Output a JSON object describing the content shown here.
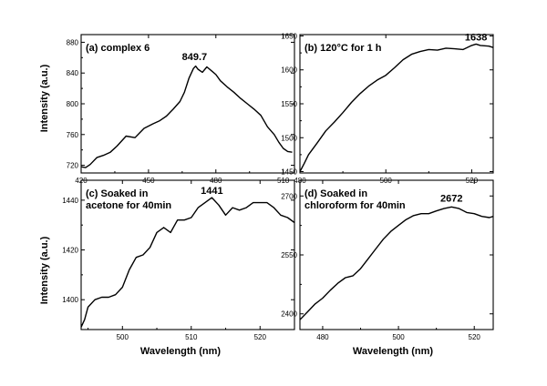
{
  "figure": {
    "ylabel": "Intensity (a.u.)",
    "xlabel": "Wavelength (nm)"
  },
  "chart_data": [
    {
      "type": "line",
      "panel_label": "(a) complex 6",
      "annotation": "849.7",
      "xlim": [
        420,
        515
      ],
      "ylim": [
        710,
        890
      ],
      "xticks": [
        420,
        450,
        480,
        510
      ],
      "yticks": [
        720,
        760,
        800,
        840,
        880
      ],
      "annotation_at": [
        470.5,
        849.7
      ],
      "x": [
        420,
        422,
        424,
        427,
        430,
        433,
        436,
        440,
        444,
        446,
        448,
        450,
        452,
        455,
        458,
        461,
        464,
        466,
        468,
        470,
        471,
        472,
        474,
        476,
        478,
        480,
        482,
        485,
        488,
        491,
        494,
        497,
        500,
        503,
        506,
        508,
        510,
        512,
        514
      ],
      "y": [
        718,
        717,
        721,
        730,
        733,
        737,
        745,
        758,
        756,
        762,
        768,
        771,
        774,
        778,
        784,
        793,
        803,
        815,
        833,
        846,
        849,
        845,
        841,
        848,
        843,
        838,
        830,
        822,
        815,
        807,
        800,
        793,
        785,
        770,
        760,
        750,
        742,
        738,
        737
      ]
    },
    {
      "type": "line",
      "panel_label": "(b) 120°C for 1 h",
      "annotation": "1638",
      "xlim": [
        480,
        525
      ],
      "ylim": [
        1448,
        1652
      ],
      "xticks": [
        480,
        500,
        520
      ],
      "yticks": [
        1450,
        1500,
        1550,
        1600,
        1650
      ],
      "annotation_at": [
        521,
        1638
      ],
      "x": [
        480,
        481,
        482,
        484,
        486,
        488,
        490,
        492,
        494,
        496,
        498,
        500,
        502,
        504,
        506,
        508,
        510,
        512,
        514,
        516,
        518,
        520,
        521,
        522,
        524,
        525
      ],
      "y": [
        1450,
        1462,
        1475,
        1492,
        1510,
        1523,
        1537,
        1552,
        1565,
        1576,
        1585,
        1592,
        1603,
        1615,
        1623,
        1627,
        1630,
        1629,
        1632,
        1631,
        1630,
        1636,
        1638,
        1636,
        1635,
        1633
      ]
    },
    {
      "type": "line",
      "panel_label": "(c) Soaked in acetone for 40min",
      "annotation": "1441",
      "xlim": [
        494,
        525
      ],
      "ylim": [
        1388,
        1448
      ],
      "xticks": [
        500,
        510,
        520
      ],
      "yticks": [
        1400,
        1420,
        1440
      ],
      "annotation_at": [
        513,
        1441
      ],
      "x": [
        494,
        494.5,
        495,
        496,
        497,
        498,
        499,
        500,
        501,
        502,
        503,
        504,
        505,
        506,
        507,
        508,
        509,
        510,
        511,
        512,
        513,
        514,
        515,
        516,
        517,
        518,
        519,
        520,
        521,
        522,
        523,
        524,
        525
      ],
      "y": [
        1389,
        1392,
        1397,
        1400,
        1401,
        1401,
        1402,
        1405,
        1412,
        1417,
        1418,
        1421,
        1427,
        1429,
        1427,
        1432,
        1432,
        1433,
        1437,
        1439,
        1441,
        1438,
        1434,
        1437,
        1436,
        1437,
        1439,
        1439,
        1439,
        1437,
        1434,
        1433,
        1431
      ]
    },
    {
      "type": "line",
      "panel_label": "(d) Soaked in chloroform for 40min",
      "annotation": "2672",
      "xlim": [
        474,
        525
      ],
      "ylim": [
        2360,
        2740
      ],
      "xticks": [
        480,
        500,
        520
      ],
      "yticks": [
        2400,
        2550,
        2700
      ],
      "annotation_at": [
        514,
        2672
      ],
      "x": [
        474,
        476,
        478,
        480,
        482,
        484,
        486,
        488,
        490,
        492,
        494,
        496,
        498,
        500,
        502,
        504,
        506,
        508,
        510,
        512,
        514,
        516,
        518,
        520,
        522,
        524,
        525
      ],
      "y": [
        2385,
        2405,
        2425,
        2440,
        2460,
        2478,
        2492,
        2497,
        2515,
        2540,
        2565,
        2590,
        2610,
        2625,
        2640,
        2650,
        2655,
        2655,
        2662,
        2668,
        2672,
        2668,
        2658,
        2655,
        2648,
        2645,
        2648
      ]
    }
  ]
}
